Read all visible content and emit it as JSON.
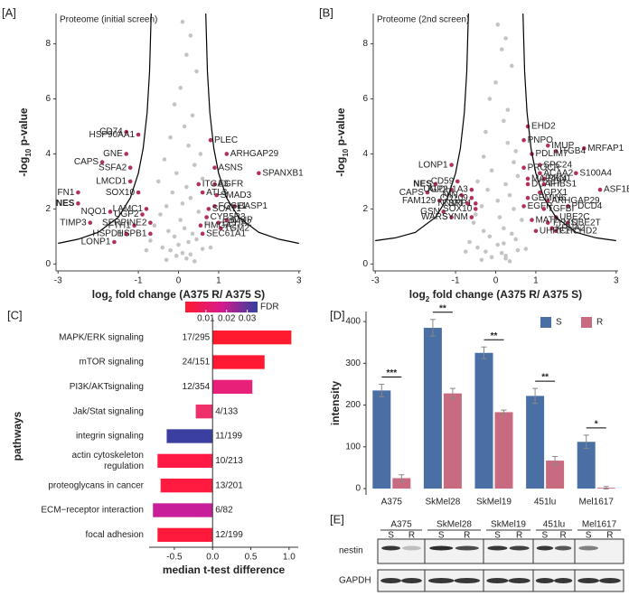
{
  "chart_data": [
    {
      "type": "scatter",
      "panel": "[A]",
      "subtitle": "Proteome (initial screen)",
      "x_label": {
        "main": "log",
        "sub": "2",
        "rest": " fold change (A375 R/ A375 S)"
      },
      "y_label": {
        "main": "-log",
        "sub": "10",
        "rest": " p-value"
      },
      "xlim": [
        -3.05,
        3.05
      ],
      "xticks": [
        -3,
        -1,
        0,
        1,
        3
      ],
      "ylim": [
        -0.25,
        9.1
      ],
      "yticks": [
        0,
        2,
        4,
        6,
        8
      ],
      "series": [
        {
          "color": "#c4c4c4",
          "x": [
            0.1,
            0.3,
            0.2,
            0.45,
            0.05,
            -0.1,
            0.35,
            0.15,
            -0.2,
            0.25,
            0.55,
            -0.35,
            0.4,
            -0.05,
            0.6,
            -0.5,
            0.2,
            -0.15,
            0.3,
            0.1,
            -0.3,
            0.5,
            -0.45,
            0.05,
            0.7,
            -0.6,
            0.15,
            -0.25,
            0.35,
            -0.1,
            0.45,
            -0.7,
            0.25,
            0.0,
            -0.4,
            0.6,
            -0.2,
            0.1,
            0.3,
            -0.05,
            0.8,
            -0.8,
            0.2,
            -0.3,
            0.4
          ],
          "y": [
            8.8,
            8.3,
            7.6,
            7.0,
            6.4,
            5.8,
            5.4,
            5.0,
            4.6,
            4.3,
            4.0,
            3.8,
            3.6,
            3.3,
            3.1,
            3.0,
            2.8,
            2.6,
            2.4,
            2.2,
            2.1,
            1.9,
            1.8,
            1.6,
            1.5,
            1.4,
            1.3,
            1.2,
            1.1,
            1.0,
            0.9,
            0.85,
            0.8,
            0.7,
            0.6,
            0.55,
            0.5,
            0.4,
            0.35,
            0.3,
            0.6,
            0.5,
            0.2,
            0.15,
            0.1
          ]
        },
        {
          "color": "#b3305c",
          "bold_points": [
            16
          ],
          "labels": [
            "CD74",
            "HSP90AA1",
            "PLEC",
            "ARHGAP29",
            "GNE",
            "CAPS",
            "SSFA2",
            "ASNS",
            "SPANXB1",
            "LMCD1",
            "FN1",
            "ITGA3",
            "EGFR",
            "ATL3",
            "SMAD3",
            "SOX10",
            "NES",
            "FOSL1",
            "BASP1",
            "SOAT1",
            "LAMC1",
            "NQO1",
            "UGP2",
            "CYB5R3",
            "IMUP",
            "TIMP3",
            "SERPINE2",
            "FTH1",
            "HMGA2",
            "EPHA2",
            "TGM2",
            "HSPD1",
            "HSPB1",
            "SEC61A1",
            "LONP1"
          ],
          "x": [
            -1.3,
            -1.0,
            0.8,
            1.2,
            -1.3,
            -1.9,
            -1.2,
            0.9,
            2.0,
            -1.2,
            -2.5,
            0.5,
            0.9,
            0.6,
            0.95,
            -1.0,
            -2.5,
            0.9,
            1.4,
            0.75,
            -0.8,
            -1.7,
            -0.9,
            0.7,
            1.2,
            -2.2,
            -0.7,
            -1.1,
            0.55,
            1.0,
            1.05,
            -1.3,
            -0.7,
            0.6,
            -1.6
          ],
          "y": [
            4.8,
            4.7,
            4.5,
            4.0,
            4.0,
            3.7,
            3.5,
            3.5,
            3.3,
            3.0,
            2.6,
            2.9,
            2.9,
            2.6,
            2.5,
            2.6,
            2.2,
            2.1,
            2.1,
            2.0,
            2.0,
            1.9,
            1.8,
            1.7,
            1.6,
            1.5,
            1.5,
            1.4,
            1.4,
            1.5,
            1.3,
            1.1,
            1.1,
            1.1,
            0.8
          ]
        }
      ],
      "curves": {
        "color": "#000000",
        "lines": [
          {
            "x": [
              0.68,
              0.72,
              0.78,
              0.88,
              1.0,
              1.2,
              1.5,
              2.0,
              2.5,
              3.0
            ],
            "y": [
              9.1,
              7.0,
              5.5,
              4.2,
              3.3,
              2.4,
              1.7,
              1.15,
              0.9,
              0.75
            ]
          },
          {
            "x": [
              -0.68,
              -0.72,
              -0.78,
              -0.88,
              -1.0,
              -1.2,
              -1.5,
              -2.0,
              -2.5,
              -3.0
            ],
            "y": [
              9.1,
              7.0,
              5.5,
              4.2,
              3.3,
              2.4,
              1.7,
              1.15,
              0.9,
              0.75
            ]
          }
        ]
      }
    },
    {
      "type": "scatter",
      "panel": "[B]",
      "subtitle": "Proteome (2nd screen)",
      "x_label": {
        "main": "log",
        "sub": "2",
        "rest": " fold change (A375 R/ A375 S)"
      },
      "y_label": {
        "main": "-log",
        "sub": "10",
        "rest": " p-value"
      },
      "xlim": [
        -3.05,
        3.05
      ],
      "xticks": [
        -3,
        -1,
        0,
        1,
        3
      ],
      "ylim": [
        -0.25,
        9.1
      ],
      "yticks": [
        0,
        2,
        4,
        6,
        8
      ],
      "series": [
        {
          "color": "#c4c4c4",
          "x": [
            0.05,
            0.25,
            0.15,
            0.4,
            0.0,
            -0.15,
            0.3,
            0.2,
            -0.25,
            0.3,
            0.5,
            -0.3,
            0.45,
            -0.1,
            0.55,
            -0.45,
            0.25,
            -0.2,
            0.35,
            0.05,
            -0.35,
            0.45,
            -0.5,
            0.1,
            0.65,
            -0.55,
            0.2,
            -0.3,
            0.4,
            -0.15,
            0.5,
            -0.65,
            0.2,
            0.05,
            -0.45,
            0.55,
            -0.25,
            0.15,
            0.25,
            -0.1,
            0.75,
            -0.75,
            0.25,
            -0.35,
            0.35
          ],
          "y": [
            8.7,
            8.2,
            7.8,
            7.2,
            6.6,
            6.0,
            5.6,
            5.2,
            4.8,
            4.4,
            4.1,
            3.9,
            3.7,
            3.4,
            3.2,
            3.0,
            2.9,
            2.7,
            2.5,
            2.3,
            2.1,
            2.0,
            1.8,
            1.7,
            1.6,
            1.5,
            1.3,
            1.2,
            1.1,
            1.0,
            0.9,
            0.8,
            0.75,
            0.7,
            0.6,
            0.5,
            0.45,
            0.4,
            0.3,
            0.25,
            0.55,
            0.45,
            0.2,
            0.15,
            0.1
          ]
        },
        {
          "color": "#b3305c",
          "bold_points": [
            19
          ],
          "labels": [
            "EHD2",
            "PNPO",
            "IMUP",
            "MRFAP1",
            "ITGB4",
            "PDLIM7",
            "SPC24",
            "PROCR",
            "LONP1",
            "ACAA2",
            "S100A4",
            "MAP4K4",
            "PKN1",
            "THBS1",
            "ASF1B",
            "CD59",
            "DCAF7",
            "UGP2",
            "ALDH1A3",
            "NES",
            "NIN",
            "GPX1",
            "CAPS",
            "ARHGAP29",
            "CD109",
            "GEMIN6",
            "PDCD4",
            "FAM129",
            "NNMT",
            "SRP1",
            "EGFR",
            "TGFBI",
            "SOX10",
            "GSN",
            "WARS",
            "SYNM",
            "UBE2C",
            "MAT2",
            "TYMS",
            "UBE2T",
            "KPNA2",
            "UHRF1",
            "CHCHD2"
          ],
          "x": [
            0.8,
            0.7,
            1.3,
            2.2,
            1.5,
            0.9,
            1.1,
            0.7,
            -1.1,
            1.1,
            2.0,
            0.8,
            1.2,
            1.2,
            2.6,
            -0.95,
            0.8,
            -1.1,
            -0.6,
            -1.5,
            -0.85,
            1.1,
            -1.7,
            1.3,
            -0.6,
            0.8,
            1.8,
            -1.4,
            -0.7,
            -0.5,
            0.7,
            1.2,
            -0.5,
            -1.3,
            -1.1,
            -0.6,
            1.5,
            0.9,
            1.3,
            1.8,
            1.4,
            1.0,
            1.5
          ],
          "y": [
            5.0,
            4.5,
            4.3,
            4.2,
            4.1,
            4.0,
            3.6,
            3.5,
            3.6,
            3.3,
            3.3,
            3.1,
            3.1,
            2.9,
            2.7,
            3.0,
            2.9,
            2.7,
            2.7,
            2.9,
            2.5,
            2.6,
            2.6,
            2.3,
            2.4,
            2.4,
            2.1,
            2.3,
            2.2,
            2.2,
            2.1,
            2.0,
            2.0,
            1.9,
            1.7,
            1.7,
            1.7,
            1.6,
            1.5,
            1.5,
            1.3,
            1.2,
            1.2
          ]
        }
      ],
      "curves": {
        "color": "#000000",
        "lines": [
          {
            "x": [
              0.68,
              0.72,
              0.78,
              0.88,
              1.0,
              1.2,
              1.5,
              2.0,
              2.5,
              3.0
            ],
            "y": [
              9.1,
              7.0,
              5.5,
              4.2,
              3.3,
              2.4,
              1.7,
              1.15,
              0.95,
              0.85
            ]
          },
          {
            "x": [
              -0.68,
              -0.72,
              -0.78,
              -0.88,
              -1.0,
              -1.2,
              -1.5,
              -2.0,
              -2.5,
              -3.0
            ],
            "y": [
              9.1,
              7.0,
              5.5,
              4.2,
              3.3,
              2.4,
              1.7,
              1.15,
              0.95,
              0.85
            ]
          }
        ]
      }
    },
    {
      "type": "hbar",
      "panel": "[C]",
      "x_label": "median t-test difference",
      "y_label": "pathways",
      "categories": [
        "MAPK/ERK signaling",
        "mTOR signaling",
        "PI3K/AKTsignaling",
        "Jak/Stat signaling",
        "integrin signaling",
        [
          "actin cytoskeleton",
          "regulation"
        ],
        "proteoglycans in cancer",
        "ECM−receptor interaction",
        "focal adhesion"
      ],
      "values": [
        1.03,
        0.68,
        0.52,
        -0.22,
        -0.6,
        -0.72,
        -0.68,
        -0.78,
        -0.72
      ],
      "annotations": [
        "17/295",
        "24/151",
        "12/354",
        "4/133",
        "11/199",
        "10/213",
        "13/201",
        "6/82",
        "12/199"
      ],
      "colors": [
        "#ff1a2e",
        "#ff1a33",
        "#e8207a",
        "#f0306a",
        "#3a3fa0",
        "#ff1a45",
        "#ff1a40",
        "#c81e9a",
        "#ff1a3c"
      ],
      "xlim": [
        -0.83,
        1.12
      ],
      "xticks": [
        {
          "value": -0.5,
          "label": "-0.5"
        },
        {
          "value": 0,
          "label": "0.0"
        },
        {
          "value": 0.5,
          "label": "0.5"
        },
        {
          "value": 1,
          "label": "1.0"
        }
      ],
      "colorbar": {
        "label": "FDR",
        "lim": [
          0,
          0.035
        ],
        "ticks": [
          0.01,
          0.02,
          0.03
        ],
        "colors": [
          "#ff1a2e",
          "#d61a8c",
          "#3340a0"
        ]
      }
    },
    {
      "type": "grouped_bar",
      "panel": "[D]",
      "y_label": "intensity",
      "categories": [
        "A375",
        "SkMel28",
        "SkMel19",
        "451lu",
        "Mel1617"
      ],
      "series": [
        {
          "name": "S",
          "color": "#4a6fa5",
          "values": [
            235,
            385,
            325,
            222,
            112
          ],
          "errors": [
            15,
            20,
            14,
            18,
            16
          ]
        },
        {
          "name": "R",
          "color": "#c96b80",
          "values": [
            25,
            228,
            183,
            67,
            2
          ],
          "errors": [
            8,
            12,
            5,
            10,
            3
          ]
        }
      ],
      "annotations": [
        "***",
        "**",
        "**",
        "**",
        "*"
      ],
      "ylim": [
        -15,
        424
      ],
      "yticks": [
        0,
        100,
        200,
        300,
        400
      ],
      "legend": "top-right"
    }
  ],
  "blot": {
    "panel": "[E]",
    "cell_lines": [
      "A375",
      "SkMel28",
      "SkMel19",
      "451lu",
      "Mel1617"
    ],
    "lanes": [
      "S",
      "R"
    ],
    "rows": [
      "nestin",
      "GAPDH"
    ]
  }
}
